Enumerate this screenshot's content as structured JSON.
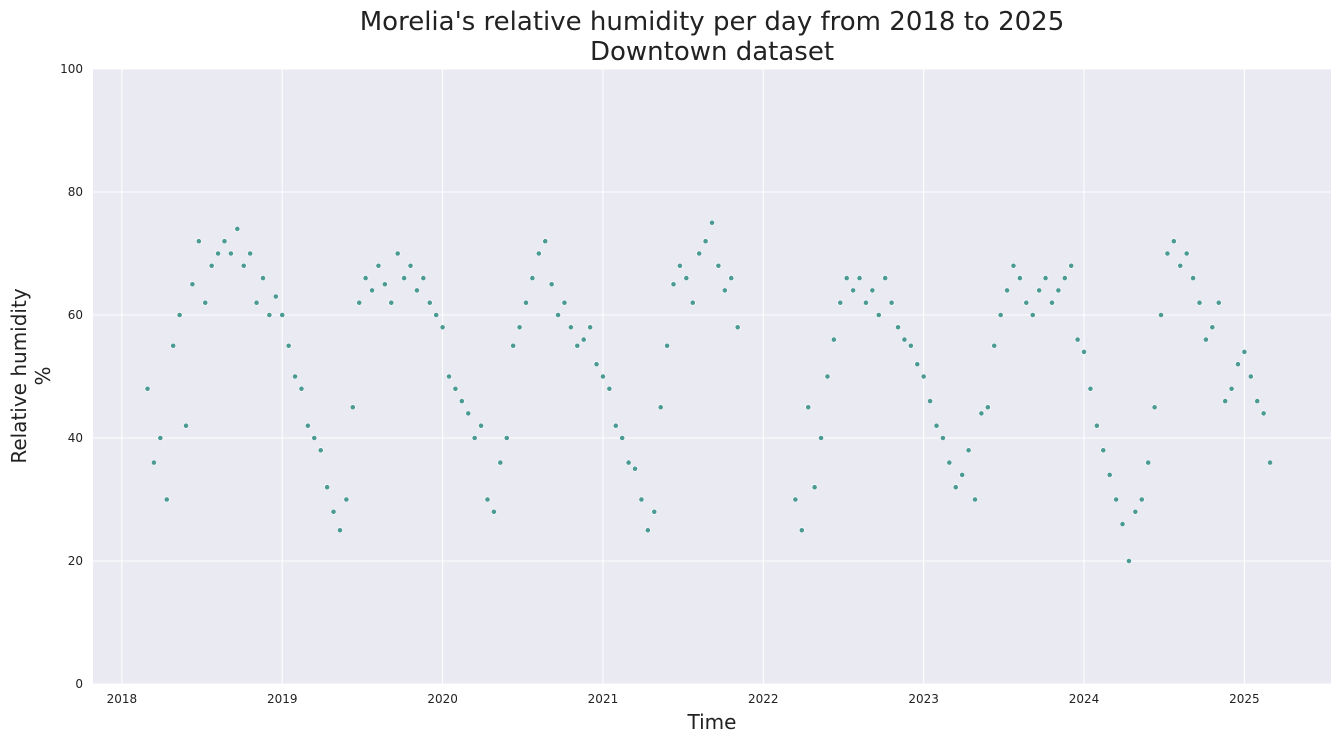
{
  "chart_data": {
    "type": "scatter",
    "title": "Morelia's relative humidity per day from 2018 to 2025",
    "subtitle": "Downtown dataset",
    "x_label": "Time",
    "y_label": [
      "Relative humidity",
      "%"
    ],
    "color": "#4c9a94",
    "grid": true,
    "xlim": [
      2017.82,
      2025.54
    ],
    "xticks": [
      2018,
      2019,
      2020,
      2021,
      2022,
      2023,
      2024,
      2025
    ],
    "ylim": [
      0,
      100
    ],
    "yticks": [
      0,
      20,
      40,
      60,
      80,
      100
    ],
    "x": [
      2018.16,
      2018.2,
      2018.24,
      2018.28,
      2018.32,
      2018.36,
      2018.4,
      2018.44,
      2018.48,
      2018.52,
      2018.56,
      2018.6,
      2018.64,
      2018.68,
      2018.72,
      2018.76,
      2018.8,
      2018.84,
      2018.88,
      2018.92,
      2018.96,
      2019.0,
      2019.04,
      2019.08,
      2019.12,
      2019.16,
      2019.2,
      2019.24,
      2019.28,
      2019.32,
      2019.36,
      2019.4,
      2019.44,
      2019.48,
      2019.52,
      2019.56,
      2019.6,
      2019.64,
      2019.68,
      2019.72,
      2019.76,
      2019.8,
      2019.84,
      2019.88,
      2019.92,
      2019.96,
      2020.0,
      2020.04,
      2020.08,
      2020.12,
      2020.16,
      2020.2,
      2020.24,
      2020.28,
      2020.32,
      2020.36,
      2020.4,
      2020.44,
      2020.48,
      2020.52,
      2020.56,
      2020.6,
      2020.64,
      2020.68,
      2020.72,
      2020.76,
      2020.8,
      2020.84,
      2020.88,
      2020.92,
      2020.96,
      2021.0,
      2021.04,
      2021.08,
      2021.12,
      2021.16,
      2021.2,
      2021.24,
      2021.28,
      2021.32,
      2021.36,
      2021.4,
      2021.44,
      2021.48,
      2021.52,
      2021.56,
      2021.6,
      2021.64,
      2021.68,
      2021.72,
      2021.76,
      2021.8,
      2021.84,
      2022.2,
      2022.24,
      2022.28,
      2022.32,
      2022.36,
      2022.4,
      2022.44,
      2022.48,
      2022.52,
      2022.56,
      2022.6,
      2022.64,
      2022.68,
      2022.72,
      2022.76,
      2022.8,
      2022.84,
      2022.88,
      2022.92,
      2022.96,
      2023.0,
      2023.04,
      2023.08,
      2023.12,
      2023.16,
      2023.2,
      2023.24,
      2023.28,
      2023.32,
      2023.36,
      2023.4,
      2023.44,
      2023.48,
      2023.52,
      2023.56,
      2023.6,
      2023.64,
      2023.68,
      2023.72,
      2023.76,
      2023.8,
      2023.84,
      2023.88,
      2023.92,
      2023.96,
      2024.0,
      2024.04,
      2024.08,
      2024.12,
      2024.16,
      2024.2,
      2024.24,
      2024.28,
      2024.32,
      2024.36,
      2024.4,
      2024.44,
      2024.48,
      2024.52,
      2024.56,
      2024.6,
      2024.64,
      2024.68,
      2024.72,
      2024.76,
      2024.8,
      2024.84,
      2024.88,
      2024.92,
      2024.96,
      2025.0,
      2025.04,
      2025.08,
      2025.12,
      2025.16
    ],
    "values": [
      48,
      36,
      40,
      30,
      55,
      60,
      42,
      65,
      72,
      62,
      68,
      70,
      72,
      70,
      74,
      68,
      70,
      62,
      66,
      60,
      63,
      60,
      55,
      50,
      48,
      42,
      40,
      38,
      32,
      28,
      25,
      30,
      45,
      62,
      66,
      64,
      68,
      65,
      62,
      70,
      66,
      68,
      64,
      66,
      62,
      60,
      58,
      50,
      48,
      46,
      44,
      40,
      42,
      30,
      28,
      36,
      40,
      55,
      58,
      62,
      66,
      70,
      72,
      65,
      60,
      62,
      58,
      55,
      56,
      58,
      52,
      50,
      48,
      42,
      40,
      36,
      35,
      30,
      25,
      28,
      45,
      55,
      65,
      68,
      66,
      62,
      70,
      72,
      75,
      68,
      64,
      66,
      58,
      30,
      25,
      45,
      32,
      40,
      50,
      56,
      62,
      66,
      64,
      66,
      62,
      64,
      60,
      66,
      62,
      58,
      56,
      55,
      52,
      50,
      46,
      42,
      40,
      36,
      32,
      34,
      38,
      30,
      44,
      45,
      55,
      60,
      64,
      68,
      66,
      62,
      60,
      64,
      66,
      62,
      64,
      66,
      68,
      56,
      54,
      48,
      42,
      38,
      34,
      30,
      26,
      20,
      28,
      30,
      36,
      45,
      60,
      70,
      72,
      68,
      70,
      66,
      62,
      56,
      58,
      62,
      46,
      48,
      52,
      54,
      50,
      46,
      44,
      36
    ]
  }
}
